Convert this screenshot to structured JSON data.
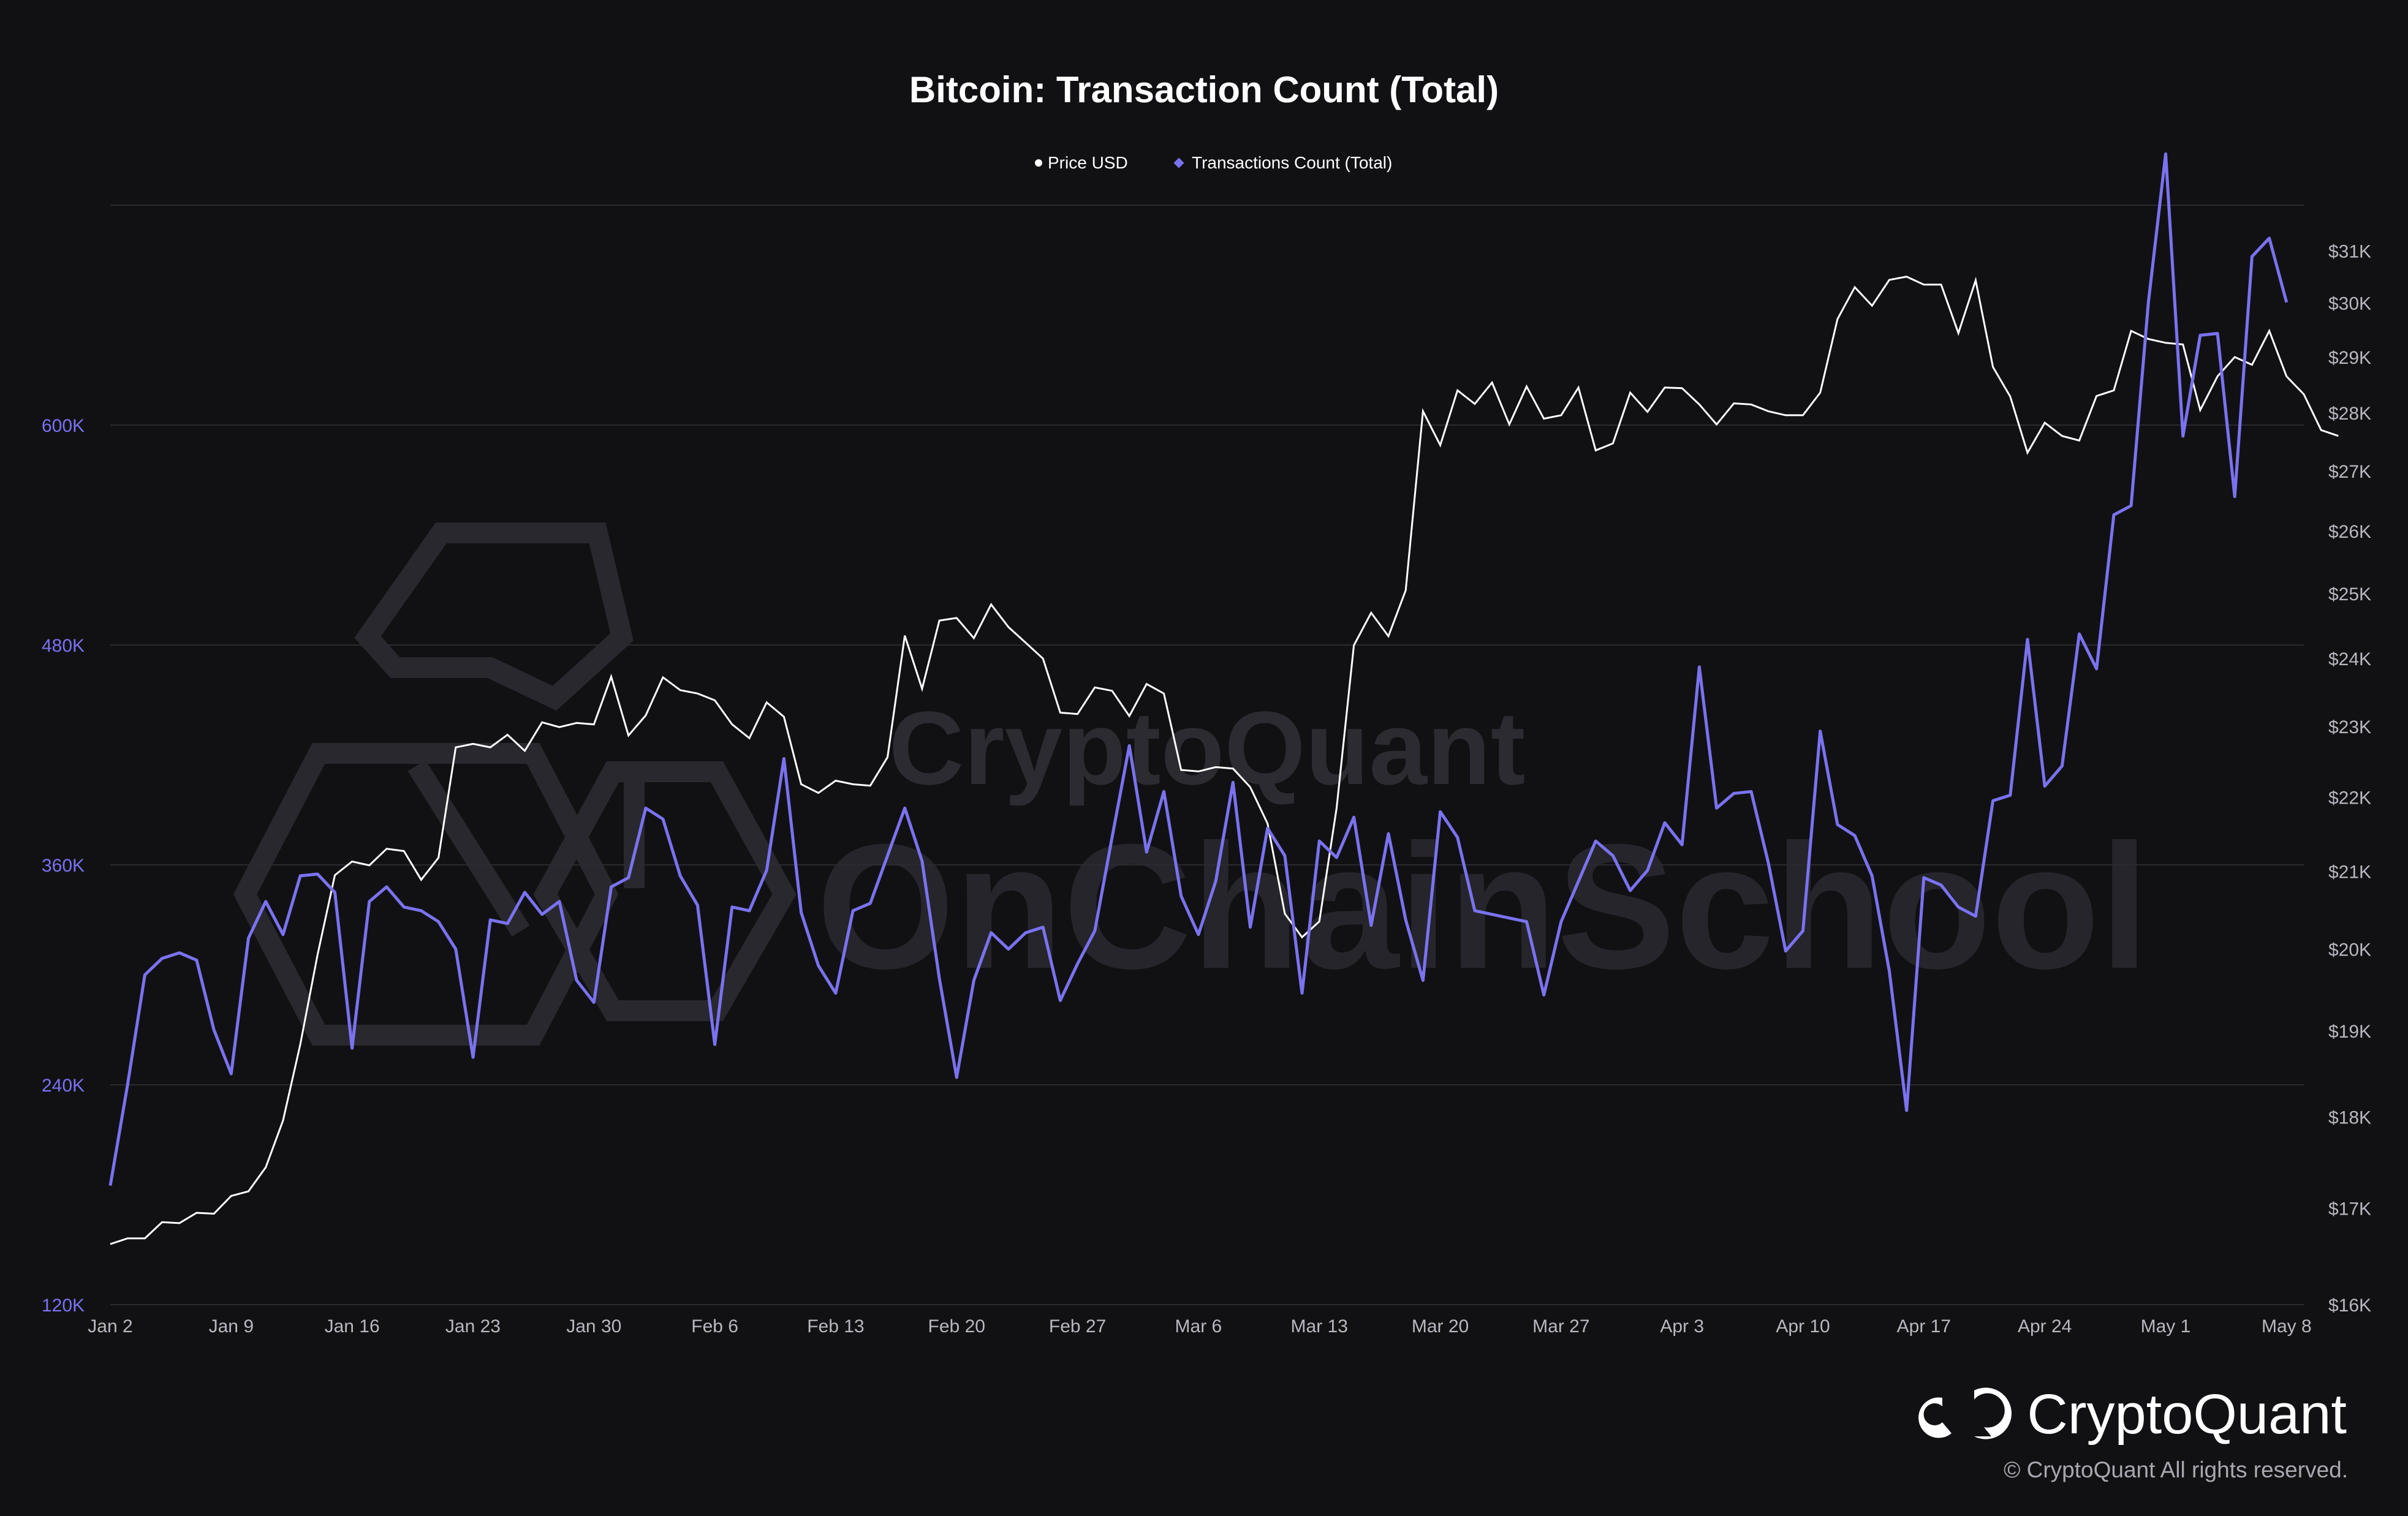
{
  "colors": {
    "background": "#111114",
    "grid": "#2a2a30",
    "price_line": "#ffffff",
    "tx_line": "#7b72f0",
    "left_axis_text": "#7b72f0",
    "right_axis_text": "#b8b8c0",
    "x_axis_text": "#b8b8c0",
    "watermark": "#2b2b31"
  },
  "watermark": {
    "line1": "CryptoQuant",
    "line2": "OnChainSchool"
  },
  "branding": {
    "logo_text": "CryptoQuant",
    "copyright": "© CryptoQuant All rights reserved.",
    "logo_icon": "cryptoquant-logo-icon"
  },
  "chart_data": {
    "type": "line",
    "title": "Bitcoin: Transaction Count (Total)",
    "legend_position": "top-center",
    "grid": true,
    "x_ticks": [
      "Jan 2",
      "Jan 9",
      "Jan 16",
      "Jan 23",
      "Jan 30",
      "Feb 6",
      "Feb 13",
      "Feb 20",
      "Feb 27",
      "Mar 6",
      "Mar 13",
      "Mar 20",
      "Mar 27",
      "Apr 3",
      "Apr 10",
      "Apr 17",
      "Apr 24",
      "May 1",
      "May 8"
    ],
    "x_range": [
      "Jan 2",
      "May 9"
    ],
    "left_axis": {
      "ticks": [
        "120K",
        "240K",
        "360K",
        "480K",
        "600K"
      ],
      "range": [
        120000,
        720000
      ]
    },
    "right_axis": {
      "scale": "log",
      "ticks": [
        "$16K",
        "$17K",
        "$18K",
        "$19K",
        "$20K",
        "$21K",
        "$22K",
        "$23K",
        "$24K",
        "$25K",
        "$26K",
        "$27K",
        "$28K",
        "$29K",
        "$30K",
        "$31K"
      ],
      "range": [
        16000,
        31900
      ]
    },
    "series": [
      {
        "name": "Price USD",
        "axis": "right",
        "start_date": "Jan 2",
        "values": [
          16620,
          16680,
          16680,
          16850,
          16840,
          16950,
          16940,
          17130,
          17180,
          17440,
          17960,
          18840,
          19930,
          20950,
          21130,
          21080,
          21300,
          21270,
          20890,
          21180,
          22700,
          22750,
          22700,
          22880,
          22650,
          23060,
          22990,
          23050,
          23030,
          23730,
          22870,
          23160,
          23720,
          23530,
          23480,
          23380,
          23030,
          22830,
          23350,
          23140,
          22180,
          22060,
          22230,
          22180,
          22160,
          22560,
          24350,
          23550,
          24580,
          24620,
          24310,
          24830,
          24480,
          24240,
          24000,
          23200,
          23180,
          23570,
          23520,
          23150,
          23620,
          23480,
          22380,
          22360,
          22420,
          22400,
          22140,
          21640,
          20450,
          20150,
          20350,
          21850,
          24200,
          24700,
          24340,
          25050,
          28030,
          27440,
          28400,
          28160,
          28540,
          27800,
          28470,
          27900,
          27960,
          28450,
          27350,
          27470,
          28360,
          28020,
          28450,
          28440,
          28150,
          27800,
          28170,
          28150,
          28030,
          27960,
          27960,
          28360,
          29700,
          30300,
          29950,
          30440,
          30500,
          30350,
          30350,
          29440,
          30430,
          28820,
          28290,
          27310,
          27830,
          27600,
          27520,
          28300,
          28400,
          29480,
          29330,
          29260,
          29230,
          28050,
          28650,
          29000,
          28860,
          29480,
          28650,
          28330,
          27700,
          27600
        ]
      },
      {
        "name": "Transactions Count (Total)",
        "axis": "left",
        "start_date": "Jan 2",
        "values": [
          185000,
          240000,
          300000,
          309000,
          312000,
          308000,
          270000,
          246000,
          320000,
          340000,
          322000,
          354000,
          355000,
          345000,
          260000,
          340000,
          348000,
          337000,
          335000,
          329000,
          314000,
          255000,
          330000,
          328000,
          345000,
          333000,
          340000,
          297000,
          285000,
          348000,
          353000,
          391000,
          385000,
          354000,
          338000,
          262000,
          337000,
          335000,
          357000,
          418000,
          334000,
          305000,
          290000,
          335000,
          339000,
          365000,
          391000,
          362000,
          298000,
          244000,
          297000,
          323000,
          314000,
          323000,
          326000,
          286000,
          306000,
          324000,
          375000,
          425000,
          367000,
          400000,
          343000,
          322000,
          351000,
          405000,
          326000,
          380000,
          365000,
          290000,
          373000,
          364000,
          386000,
          327000,
          377000,
          330000,
          297000,
          389000,
          375000,
          335000,
          333000,
          331000,
          329000,
          289000,
          329000,
          351000,
          373000,
          365000,
          346000,
          357000,
          383000,
          371000,
          468000,
          391000,
          399000,
          400000,
          361000,
          313000,
          324000,
          433000,
          382000,
          376000,
          354000,
          302000,
          226000,
          353000,
          349000,
          337000,
          332000,
          395000,
          398000,
          483000,
          403000,
          414000,
          486000,
          467000,
          551000,
          556000,
          667000,
          748000,
          594000,
          649000,
          650000,
          561000,
          692000,
          702000,
          667000
        ]
      }
    ]
  }
}
